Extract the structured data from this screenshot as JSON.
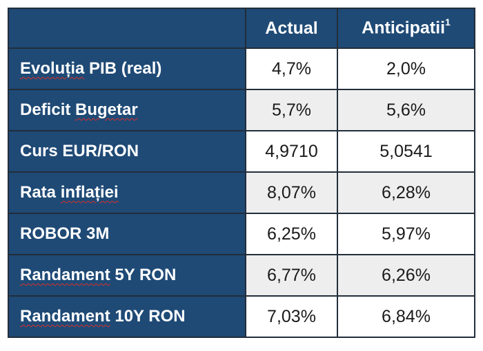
{
  "header": {
    "empty": "",
    "actual": "Actual",
    "forecast": "Anticipatii",
    "forecast_footnote": "1"
  },
  "rows": [
    {
      "label_prefix": "",
      "label_marked": "Evoluția",
      "label_suffix": " PIB (real)",
      "actual": "4,7%",
      "forecast": "2,0%"
    },
    {
      "label_prefix": "Deficit ",
      "label_marked": "Bugetar",
      "label_suffix": "",
      "actual": "5,7%",
      "forecast": "5,6%"
    },
    {
      "label_prefix": "Curs EUR/RON",
      "label_marked": "",
      "label_suffix": "",
      "actual": "4,9710",
      "forecast": "5,0541"
    },
    {
      "label_prefix": "Rata ",
      "label_marked": "inflației",
      "label_suffix": "",
      "actual": "8,07%",
      "forecast": "6,28%"
    },
    {
      "label_prefix": "ROBOR 3M",
      "label_marked": "",
      "label_suffix": "",
      "actual": "6,25%",
      "forecast": "5,97%"
    },
    {
      "label_prefix": "",
      "label_marked": "Randament",
      "label_suffix": " 5Y RON",
      "actual": "6,77%",
      "forecast": "6,26%"
    },
    {
      "label_prefix": "",
      "label_marked": "Randament",
      "label_suffix": " 10Y RON",
      "actual": "7,03%",
      "forecast": "6,84%"
    }
  ],
  "colors": {
    "header_bg": "#1f4a76",
    "border": "#222d3a",
    "alt_row_bg": "#eeeeee"
  }
}
